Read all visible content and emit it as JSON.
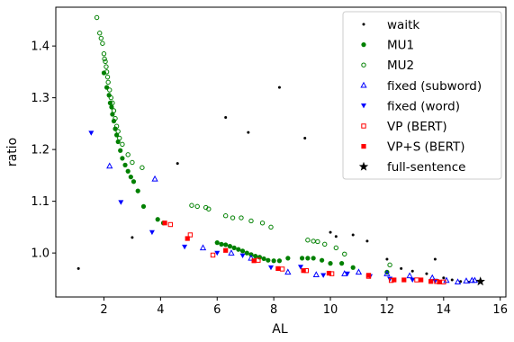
{
  "chart_data": {
    "type": "scatter",
    "title": "",
    "xlabel": "AL",
    "ylabel": "ratio",
    "xlim": [
      0.3,
      16.2
    ],
    "ylim": [
      0.915,
      1.475
    ],
    "x_ticks": [
      2,
      4,
      6,
      8,
      10,
      12,
      14,
      16
    ],
    "y_ticks": [
      1.0,
      1.1,
      1.2,
      1.3,
      1.4
    ],
    "x_tick_labels": [
      "2",
      "4",
      "6",
      "8",
      "10",
      "12",
      "14",
      "16"
    ],
    "y_tick_labels": [
      "1.0",
      "1.1",
      "1.2",
      "1.3",
      "1.4"
    ],
    "grid": false,
    "legend_position": "top-right",
    "series": [
      {
        "name": "waitk",
        "marker": "small-dot",
        "color": "#000000",
        "points": [
          [
            1.1,
            0.97
          ],
          [
            3.0,
            1.03
          ],
          [
            4.6,
            1.173
          ],
          [
            6.3,
            1.262
          ],
          [
            7.1,
            1.233
          ],
          [
            8.2,
            1.32
          ],
          [
            9.1,
            1.222
          ],
          [
            10.0,
            1.04
          ],
          [
            10.2,
            1.032
          ],
          [
            10.8,
            1.035
          ],
          [
            11.3,
            1.023
          ],
          [
            12.0,
            0.988
          ],
          [
            12.5,
            0.97
          ],
          [
            12.9,
            0.965
          ],
          [
            13.4,
            0.96
          ],
          [
            13.7,
            0.988
          ],
          [
            14.0,
            0.952
          ],
          [
            14.3,
            0.948
          ],
          [
            14.6,
            0.945
          ],
          [
            14.9,
            0.944
          ]
        ]
      },
      {
        "name": "MU1",
        "marker": "filled-circle",
        "color": "#008000",
        "points": [
          [
            2.0,
            1.348
          ],
          [
            2.1,
            1.32
          ],
          [
            2.18,
            1.305
          ],
          [
            2.22,
            1.29
          ],
          [
            2.27,
            1.282
          ],
          [
            2.3,
            1.268
          ],
          [
            2.35,
            1.255
          ],
          [
            2.4,
            1.24
          ],
          [
            2.45,
            1.228
          ],
          [
            2.5,
            1.215
          ],
          [
            2.58,
            1.198
          ],
          [
            2.65,
            1.183
          ],
          [
            2.75,
            1.17
          ],
          [
            2.85,
            1.158
          ],
          [
            2.95,
            1.147
          ],
          [
            3.05,
            1.138
          ],
          [
            3.2,
            1.12
          ],
          [
            3.4,
            1.09
          ],
          [
            3.9,
            1.065
          ],
          [
            4.1,
            1.058
          ],
          [
            6.0,
            1.02
          ],
          [
            6.15,
            1.017
          ],
          [
            6.3,
            1.016
          ],
          [
            6.45,
            1.013
          ],
          [
            6.6,
            1.01
          ],
          [
            6.75,
            1.007
          ],
          [
            6.9,
            1.004
          ],
          [
            7.05,
            1.0
          ],
          [
            7.2,
            0.997
          ],
          [
            7.35,
            0.994
          ],
          [
            7.5,
            0.992
          ],
          [
            7.65,
            0.989
          ],
          [
            7.8,
            0.986
          ],
          [
            8.0,
            0.985
          ],
          [
            8.2,
            0.985
          ],
          [
            8.5,
            0.99
          ],
          [
            9.0,
            0.99
          ],
          [
            9.2,
            0.99
          ],
          [
            9.4,
            0.99
          ],
          [
            9.7,
            0.986
          ],
          [
            10.0,
            0.98
          ],
          [
            10.4,
            0.98
          ],
          [
            10.8,
            0.972
          ],
          [
            12.0,
            0.963
          ]
        ]
      },
      {
        "name": "MU2",
        "marker": "hollow-circle",
        "color": "#008000",
        "points": [
          [
            1.75,
            1.455
          ],
          [
            1.85,
            1.425
          ],
          [
            1.9,
            1.415
          ],
          [
            1.95,
            1.405
          ],
          [
            2.0,
            1.385
          ],
          [
            2.02,
            1.375
          ],
          [
            2.05,
            1.37
          ],
          [
            2.08,
            1.36
          ],
          [
            2.1,
            1.35
          ],
          [
            2.13,
            1.34
          ],
          [
            2.15,
            1.33
          ],
          [
            2.2,
            1.315
          ],
          [
            2.25,
            1.3
          ],
          [
            2.3,
            1.29
          ],
          [
            2.35,
            1.275
          ],
          [
            2.4,
            1.26
          ],
          [
            2.45,
            1.245
          ],
          [
            2.5,
            1.235
          ],
          [
            2.55,
            1.222
          ],
          [
            2.65,
            1.21
          ],
          [
            2.85,
            1.19
          ],
          [
            3.0,
            1.175
          ],
          [
            3.35,
            1.165
          ],
          [
            5.1,
            1.092
          ],
          [
            5.3,
            1.09
          ],
          [
            5.6,
            1.088
          ],
          [
            5.7,
            1.085
          ],
          [
            6.3,
            1.072
          ],
          [
            6.55,
            1.068
          ],
          [
            6.85,
            1.068
          ],
          [
            7.2,
            1.062
          ],
          [
            7.6,
            1.058
          ],
          [
            7.9,
            1.05
          ],
          [
            9.2,
            1.025
          ],
          [
            9.4,
            1.023
          ],
          [
            9.55,
            1.022
          ],
          [
            9.8,
            1.017
          ],
          [
            10.2,
            1.01
          ],
          [
            10.5,
            0.998
          ],
          [
            12.1,
            0.977
          ]
        ]
      },
      {
        "name": "fixed (subword)",
        "marker": "hollow-triangle-up",
        "color": "#0000ff",
        "points": [
          [
            2.2,
            1.168
          ],
          [
            3.8,
            1.143
          ],
          [
            5.5,
            1.01
          ],
          [
            6.5,
            1.0
          ],
          [
            7.2,
            0.99
          ],
          [
            8.5,
            0.963
          ],
          [
            9.5,
            0.958
          ],
          [
            10.5,
            0.96
          ],
          [
            11.0,
            0.963
          ],
          [
            12.0,
            0.96
          ],
          [
            12.8,
            0.956
          ],
          [
            13.6,
            0.952
          ],
          [
            14.1,
            0.947
          ],
          [
            14.5,
            0.944
          ],
          [
            14.8,
            0.946
          ],
          [
            15.0,
            0.947
          ],
          [
            15.1,
            0.947
          ]
        ]
      },
      {
        "name": "fixed (word)",
        "marker": "filled-triangle-down",
        "color": "#0000ff",
        "points": [
          [
            1.55,
            1.232
          ],
          [
            2.6,
            1.098
          ],
          [
            3.7,
            1.04
          ],
          [
            4.85,
            1.012
          ],
          [
            6.0,
            1.0
          ],
          [
            6.9,
            0.995
          ],
          [
            7.9,
            0.972
          ],
          [
            8.95,
            0.973
          ],
          [
            9.75,
            0.957
          ],
          [
            10.6,
            0.96
          ],
          [
            11.4,
            0.955
          ],
          [
            12.1,
            0.95
          ],
          [
            12.9,
            0.948
          ],
          [
            13.7,
            0.946
          ]
        ]
      },
      {
        "name": "VP (BERT)",
        "marker": "hollow-square",
        "color": "#ff0000",
        "points": [
          [
            4.35,
            1.055
          ],
          [
            5.05,
            1.035
          ],
          [
            5.85,
            0.996
          ],
          [
            7.45,
            0.986
          ],
          [
            8.3,
            0.969
          ],
          [
            9.15,
            0.966
          ],
          [
            10.05,
            0.96
          ],
          [
            11.35,
            0.955
          ],
          [
            12.15,
            0.947
          ],
          [
            13.05,
            0.948
          ],
          [
            13.75,
            0.945
          ],
          [
            14.0,
            0.944
          ]
        ]
      },
      {
        "name": "VP+S (BERT)",
        "marker": "filled-square",
        "color": "#ff0000",
        "points": [
          [
            4.15,
            1.058
          ],
          [
            4.95,
            1.028
          ],
          [
            6.3,
            1.005
          ],
          [
            7.3,
            0.985
          ],
          [
            8.15,
            0.97
          ],
          [
            9.05,
            0.966
          ],
          [
            9.95,
            0.961
          ],
          [
            11.35,
            0.957
          ],
          [
            12.25,
            0.948
          ],
          [
            12.6,
            0.948
          ],
          [
            13.2,
            0.948
          ],
          [
            13.55,
            0.945
          ],
          [
            13.85,
            0.944
          ]
        ]
      },
      {
        "name": "full-sentence",
        "marker": "star",
        "color": "#000000",
        "points": [
          [
            15.3,
            0.945
          ]
        ]
      }
    ]
  }
}
